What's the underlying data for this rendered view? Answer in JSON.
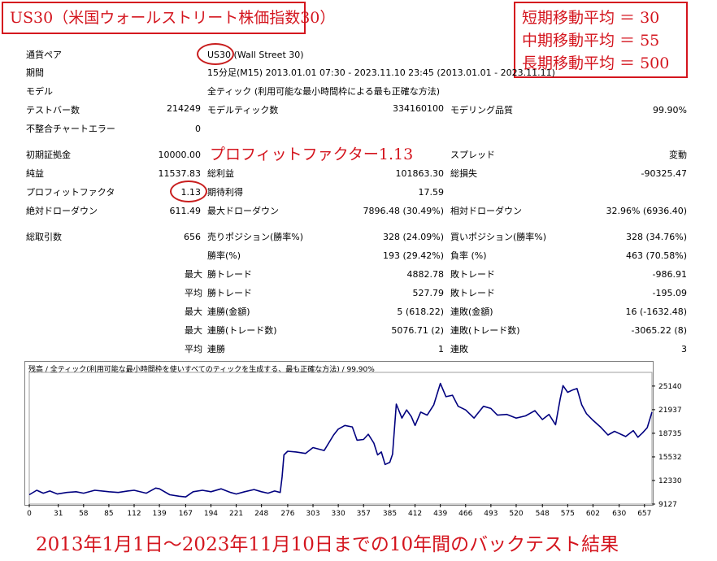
{
  "title": "US30（米国ウォールストリート株価指数30）",
  "ma_settings": [
    "短期移動平均 ＝ 30",
    "中期移動平均 ＝ 55",
    "長期移動平均 ＝ 500"
  ],
  "pf_annotation": "プロフィットファクター1.13",
  "bottom_caption": "2013年1月1日～2023年11月10日までの10年間のバックテスト結果",
  "report": {
    "pair_label": "通貨ペア",
    "pair_symbol": "US30",
    "pair_name": " (Wall Street 30)",
    "period_label": "期間",
    "period_value": "15分足(M15) 2013.01.01 07:30 - 2023.11.10 23:45 (2013.01.01 - 2023.11.11)",
    "model_label": "モデル",
    "model_value": "全ティック (利用可能な最小時間枠による最も正確な方法)",
    "bars_label": "テストバー数",
    "bars_value": "214249",
    "ticks_label": "モデルティック数",
    "ticks_value": "334160100",
    "quality_label": "モデリング品質",
    "quality_value": "99.90%",
    "mismatch_label": "不整合チャートエラー",
    "mismatch_value": "0",
    "deposit_label": "初期証拠金",
    "deposit_value": "10000.00",
    "spread_label": "スプレッド",
    "spread_value": "変動",
    "net_label": "純益",
    "net_value": "11537.83",
    "gross_profit_label": "総利益",
    "gross_profit_value": "101863.30",
    "gross_loss_label": "総損失",
    "gross_loss_value": "-90325.47",
    "pf_label": "プロフィットファクタ",
    "pf_value": "1.13",
    "expected_label": "期待利得",
    "expected_value": "17.59",
    "abs_dd_label": "絶対ドローダウン",
    "abs_dd_value": "611.49",
    "max_dd_label": "最大ドローダウン",
    "max_dd_value": "7896.48 (30.49%)",
    "rel_dd_label": "相対ドローダウン",
    "rel_dd_value": "32.96% (6936.40)",
    "total_trades_label": "総取引数",
    "total_trades_value": "656",
    "short_label": "売りポジション(勝率%)",
    "short_value": "328 (24.09%)",
    "long_label": "買いポジション(勝率%)",
    "long_value": "328 (34.76%)",
    "win_rate_label": "勝率(%)",
    "win_rate_value": "193 (29.42%)",
    "loss_rate_label": "負率 (%)",
    "loss_rate_value": "463 (70.58%)",
    "max_prefix": "最大",
    "avg_prefix": "平均",
    "max_win_label": "勝トレード",
    "max_win_value": "4882.78",
    "max_loss_label": "敗トレード",
    "max_loss_value": "-986.91",
    "avg_win_label": "勝トレード",
    "avg_win_value": "527.79",
    "avg_loss_label": "敗トレード",
    "avg_loss_value": "-195.09",
    "consec_wins_money_label": "連勝(金額)",
    "consec_wins_money_value": "5 (618.22)",
    "consec_losses_money_label": "連敗(金額)",
    "consec_losses_money_value": "16 (-1632.48)",
    "max_consec_profit_label": "連勝(トレード数)",
    "max_consec_profit_value": "5076.71 (2)",
    "max_consec_loss_label": "連敗(トレード数)",
    "max_consec_loss_value": "-3065.22 (8)",
    "avg_consec_wins_label": "連勝",
    "avg_consec_wins_value": "1",
    "avg_consec_losses_label": "連敗",
    "avg_consec_losses_value": "3"
  },
  "chart_data": {
    "type": "line",
    "title": "残高 / 全ティック(利用可能な最小時間枠を使いすべてのティックを生成する、最も正確な方法) / 99.90%",
    "xlabel": "",
    "ylabel": "",
    "x_ticks": [
      0,
      31,
      58,
      85,
      112,
      139,
      167,
      194,
      221,
      248,
      276,
      303,
      330,
      357,
      385,
      412,
      439,
      466,
      493,
      520,
      548,
      575,
      602,
      630,
      657
    ],
    "y_ticks": [
      9127,
      12330,
      15532,
      18735,
      21937,
      25140
    ],
    "xlim": [
      0,
      665
    ],
    "ylim": [
      9127,
      27000
    ],
    "line_color": "#00007f",
    "series": [
      {
        "name": "",
        "x": [
          0,
          8,
          15,
          22,
          30,
          40,
          50,
          58,
          70,
          85,
          95,
          105,
          112,
          125,
          135,
          139,
          150,
          160,
          167,
          175,
          185,
          194,
          205,
          215,
          221,
          230,
          240,
          248,
          255,
          262,
          268,
          270,
          272,
          276,
          285,
          295,
          303,
          315,
          325,
          330,
          337,
          345,
          350,
          357,
          362,
          368,
          372,
          376,
          380,
          385,
          388,
          392,
          398,
          403,
          408,
          412,
          418,
          425,
          432,
          439,
          445,
          452,
          458,
          466,
          475,
          485,
          493,
          500,
          510,
          520,
          530,
          540,
          548,
          555,
          562,
          567,
          570,
          575,
          580,
          585,
          590,
          595,
          602,
          610,
          618,
          625,
          630,
          637,
          645,
          650,
          655,
          660,
          665
        ],
        "y": [
          10400,
          11000,
          10600,
          10900,
          10500,
          10700,
          10800,
          10600,
          11000,
          10800,
          10700,
          10900,
          11000,
          10600,
          11300,
          11200,
          10400,
          10200,
          10100,
          10800,
          11000,
          10800,
          11200,
          10700,
          10500,
          10800,
          11100,
          10800,
          10600,
          10900,
          10700,
          12800,
          15800,
          16300,
          16200,
          16000,
          16800,
          16400,
          18500,
          19300,
          19800,
          19600,
          17800,
          17900,
          18600,
          17400,
          15800,
          16200,
          14500,
          14800,
          15900,
          22700,
          20800,
          21900,
          21000,
          19800,
          21600,
          21200,
          22600,
          25500,
          23700,
          23900,
          22400,
          21900,
          20800,
          22400,
          22100,
          21200,
          21300,
          20800,
          21100,
          21800,
          20600,
          21300,
          19900,
          23400,
          25200,
          24300,
          24600,
          24800,
          22600,
          21400,
          20500,
          19600,
          18500,
          19000,
          18700,
          18300,
          19100,
          18200,
          18800,
          19500,
          21600
        ]
      }
    ]
  }
}
